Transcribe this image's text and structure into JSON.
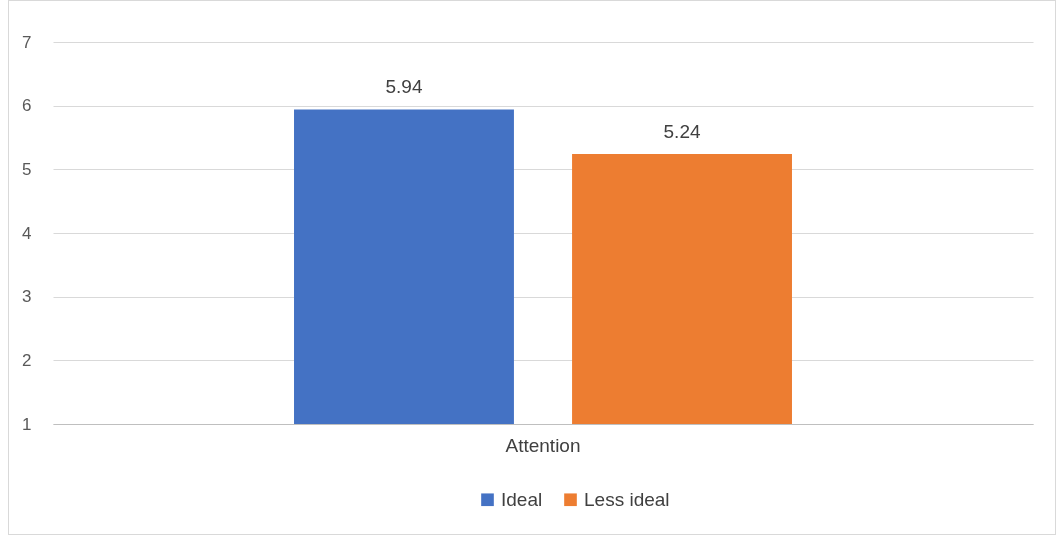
{
  "chart_data": {
    "type": "bar",
    "categories": [
      "Attention"
    ],
    "series": [
      {
        "name": "Ideal",
        "color": "#4472c4",
        "values": [
          5.94
        ]
      },
      {
        "name": "Less ideal",
        "color": "#ed7d31",
        "values": [
          5.24
        ]
      }
    ],
    "ylim": [
      1,
      7
    ],
    "yticks": [
      1,
      2,
      3,
      4,
      5,
      6,
      7
    ],
    "grid": "y",
    "legend": "bottom",
    "data_labels": true
  }
}
